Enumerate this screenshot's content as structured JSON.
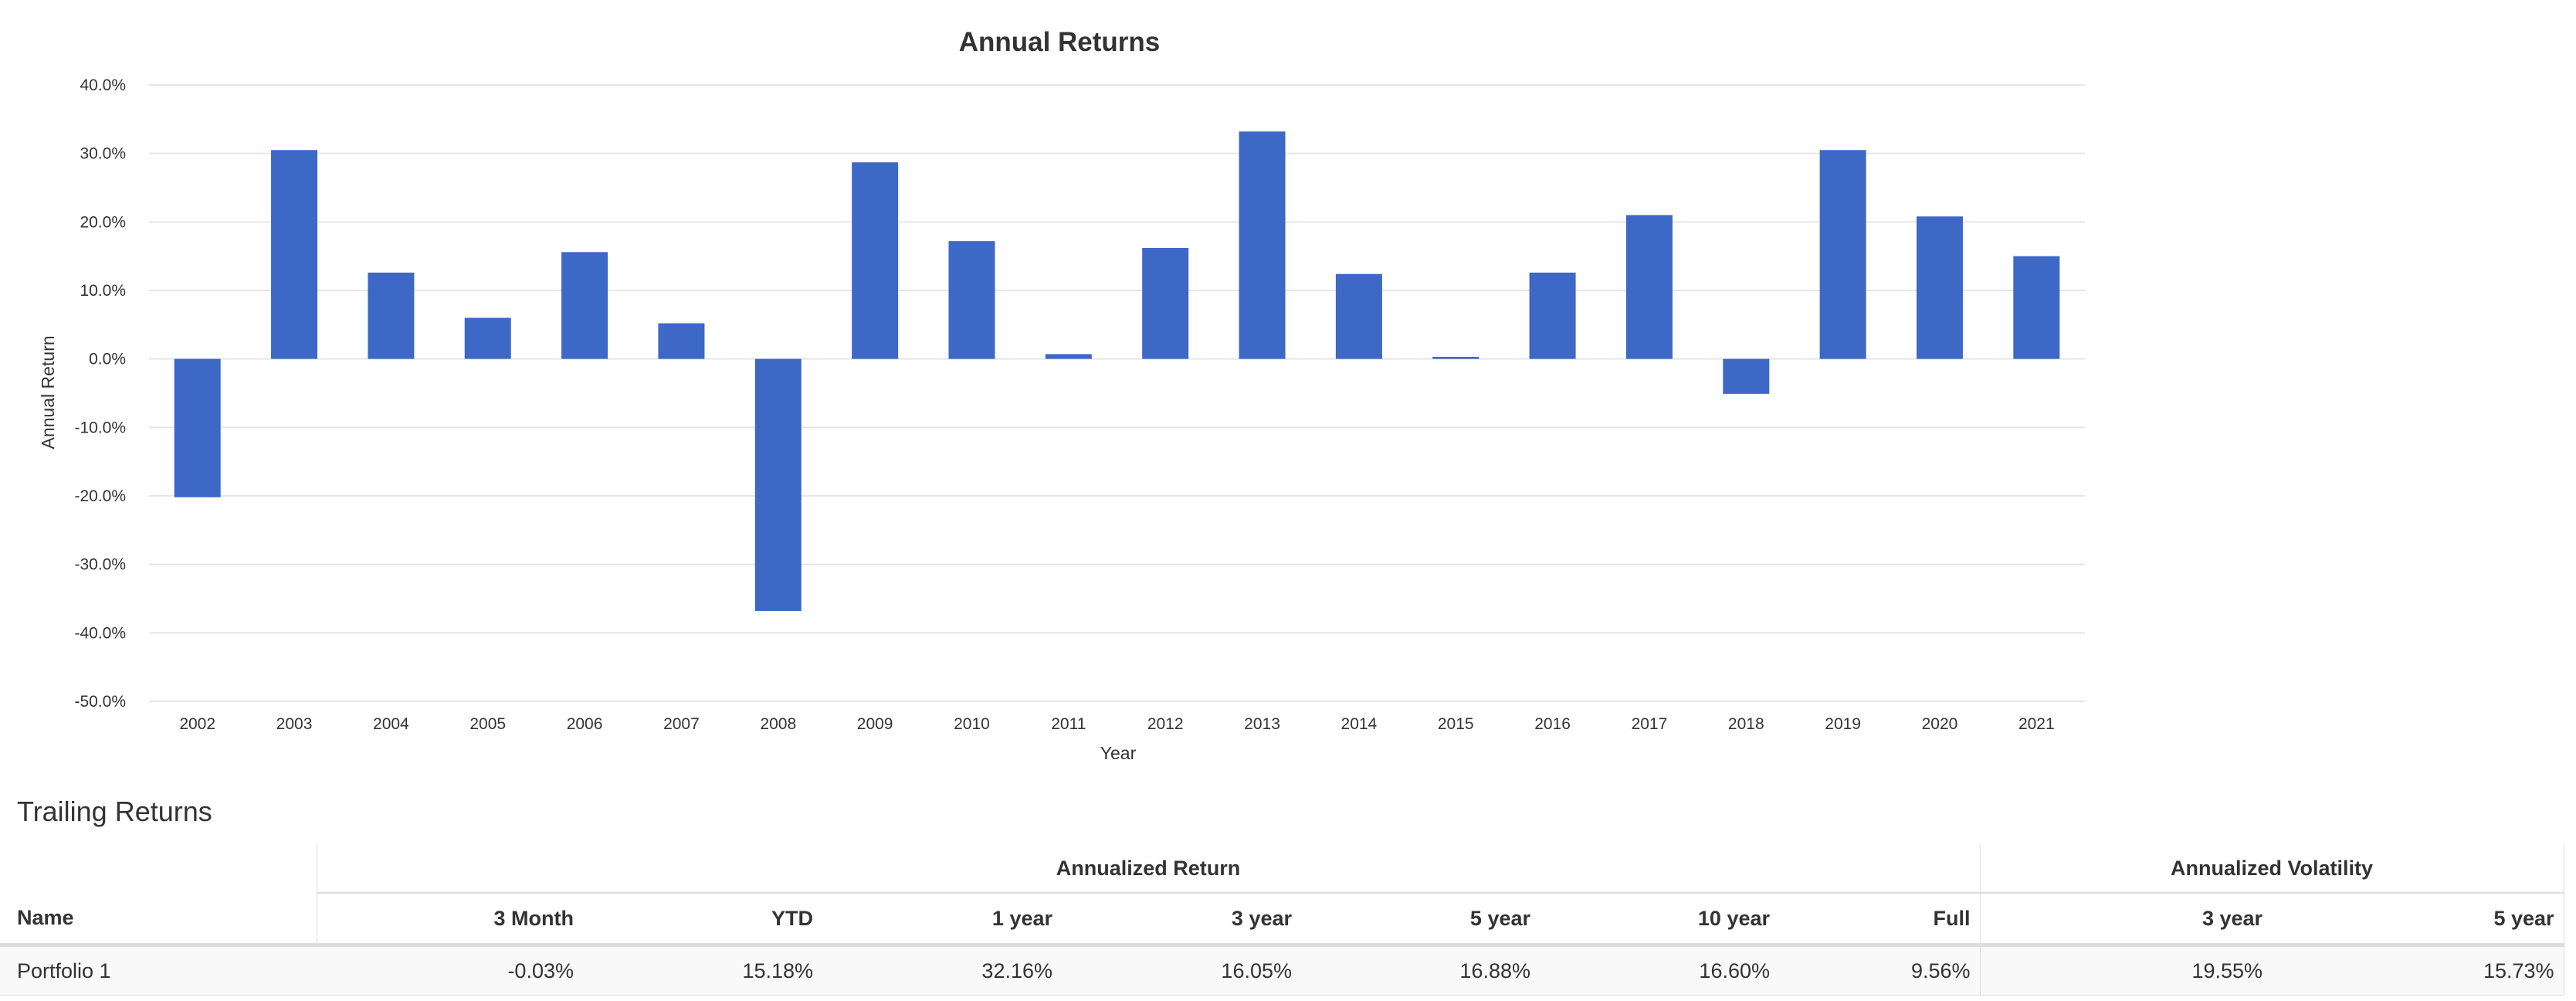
{
  "colors": {
    "bar": "#3d68c6",
    "grid": "#e6e6e6",
    "text": "#333333",
    "border": "#dddddd"
  },
  "chart_data": {
    "type": "bar",
    "title": "Annual Returns",
    "xlabel": "Year",
    "ylabel": "Annual Return",
    "ylim": [
      -50,
      40
    ],
    "yticks": [
      40,
      30,
      20,
      10,
      0,
      -10,
      -20,
      -30,
      -40,
      -50
    ],
    "ytick_labels": [
      "40.0%",
      "30.0%",
      "20.0%",
      "10.0%",
      "0.0%",
      "-10.0%",
      "-20.0%",
      "-30.0%",
      "-40.0%",
      "-50.0%"
    ],
    "grid": true,
    "legend": "none",
    "categories": [
      "2002",
      "2003",
      "2004",
      "2005",
      "2006",
      "2007",
      "2008",
      "2009",
      "2010",
      "2011",
      "2012",
      "2013",
      "2014",
      "2015",
      "2016",
      "2017",
      "2018",
      "2019",
      "2020",
      "2021"
    ],
    "values": [
      -20.2,
      30.5,
      12.6,
      6.0,
      15.6,
      5.2,
      -36.8,
      28.7,
      17.2,
      0.7,
      16.2,
      33.2,
      12.4,
      0.3,
      12.6,
      21.0,
      -5.1,
      30.5,
      20.8,
      15.0
    ]
  },
  "trailing": {
    "title": "Trailing Returns",
    "group_annualized_return": "Annualized Return",
    "group_annualized_volatility": "Annualized Volatility",
    "headers": {
      "name": "Name",
      "m3": "3 Month",
      "ytd": "YTD",
      "y1": "1 year",
      "y3": "3 year",
      "y5": "5 year",
      "y10": "10 year",
      "full": "Full",
      "vol3": "3 year",
      "vol5": "5 year"
    },
    "rows": [
      {
        "name": "Portfolio 1",
        "m3": "-0.03%",
        "ytd": "15.18%",
        "y1": "32.16%",
        "y3": "16.05%",
        "y5": "16.88%",
        "y10": "16.60%",
        "full": "9.56%",
        "vol3": "19.55%",
        "vol5": "15.73%"
      }
    ]
  }
}
